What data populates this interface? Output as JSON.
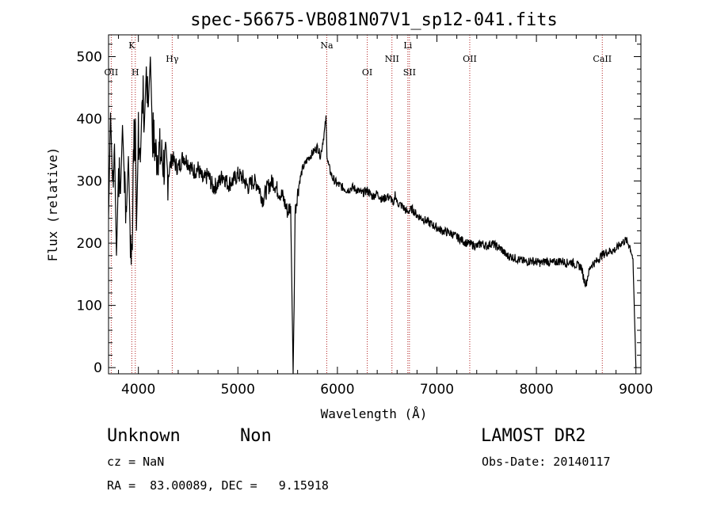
{
  "chart_data": {
    "type": "line",
    "title": "spec-56675-VB081N07V1_sp12-041.fits",
    "xlabel": "Wavelength (Å)",
    "ylabel": "Flux (relative)",
    "xlim": [
      3700,
      9050
    ],
    "ylim": [
      -10,
      535
    ],
    "xticks": [
      "4000",
      "5000",
      "6000",
      "7000",
      "8000",
      "9000"
    ],
    "yticks": [
      "0",
      "100",
      "200",
      "300",
      "400",
      "500"
    ],
    "series": [
      {
        "x": [
          3700,
          3720,
          3740,
          3760,
          3780,
          3800,
          3820,
          3840,
          3860,
          3880,
          3900,
          3920,
          3940,
          3950,
          3960,
          3970,
          3980,
          4000,
          4020,
          4040,
          4060,
          4080,
          4100,
          4120,
          4140,
          4160,
          4180,
          4200,
          4250,
          4300,
          4340,
          4360,
          4400,
          4450,
          4500,
          4550,
          4600,
          4650,
          4700,
          4750,
          4800,
          4850,
          4900,
          4950,
          5000,
          5050,
          5100,
          5150,
          5200,
          5250,
          5300,
          5350,
          5400,
          5450,
          5500,
          5530,
          5545,
          5555,
          5565,
          5575,
          5590,
          5620,
          5650,
          5700,
          5750,
          5800,
          5830,
          5850,
          5870,
          5885,
          5895,
          5905,
          5920,
          5950,
          6000,
          6050,
          6100,
          6150,
          6200,
          6250,
          6300,
          6350,
          6400,
          6450,
          6500,
          6550,
          6563,
          6580,
          6600,
          6650,
          6700,
          6750,
          6800,
          6850,
          6900,
          6950,
          7000,
          7050,
          7100,
          7150,
          7200,
          7250,
          7300,
          7350,
          7400,
          7450,
          7500,
          7550,
          7600,
          7650,
          7700,
          7750,
          7800,
          7850,
          7900,
          7950,
          8000,
          8050,
          8100,
          8150,
          8200,
          8250,
          8300,
          8350,
          8400,
          8450,
          8480,
          8500,
          8520,
          8550,
          8600,
          8650,
          8700,
          8750,
          8800,
          8850,
          8900,
          8940,
          8970,
          9000
        ],
        "y": [
          240,
          410,
          300,
          360,
          180,
          320,
          280,
          390,
          300,
          250,
          340,
          200,
          190,
          380,
          350,
          400,
          220,
          370,
          330,
          450,
          390,
          480,
          420,
          500,
          380,
          360,
          340,
          350,
          330,
          310,
          340,
          330,
          320,
          340,
          330,
          315,
          320,
          300,
          310,
          290,
          295,
          310,
          295,
          300,
          310,
          305,
          290,
          300,
          295,
          270,
          290,
          300,
          285,
          275,
          250,
          260,
          100,
          -10,
          100,
          250,
          270,
          300,
          320,
          335,
          345,
          355,
          340,
          360,
          380,
          400,
          345,
          330,
          320,
          305,
          295,
          290,
          285,
          290,
          285,
          280,
          285,
          275,
          280,
          270,
          275,
          270,
          255,
          280,
          265,
          260,
          250,
          255,
          245,
          240,
          235,
          230,
          225,
          220,
          218,
          215,
          210,
          205,
          200,
          198,
          195,
          200,
          195,
          200,
          195,
          190,
          180,
          178,
          175,
          172,
          170,
          172,
          170,
          168,
          172,
          168,
          170,
          172,
          168,
          170,
          165,
          162,
          140,
          135,
          150,
          165,
          170,
          180,
          185,
          188,
          190,
          200,
          205,
          195,
          175,
          0
        ]
      }
    ],
    "emission_lines": [
      {
        "label": "K",
        "x": 3934,
        "row": 1
      },
      {
        "label": "H",
        "x": 3969,
        "row": 3
      },
      {
        "label": "OII",
        "x": 3727,
        "row": 3
      },
      {
        "label": "Hγ",
        "x": 4340,
        "row": 2
      },
      {
        "label": "Na",
        "x": 5893,
        "row": 1
      },
      {
        "label": "OI",
        "x": 6300,
        "row": 3
      },
      {
        "label": "NII",
        "x": 6548,
        "row": 2
      },
      {
        "label": "Li",
        "x": 6708,
        "row": 1
      },
      {
        "label": "SII",
        "x": 6724,
        "row": 3
      },
      {
        "label": "OII",
        "x": 7330,
        "row": 2
      },
      {
        "label": "CaII",
        "x": 8662,
        "row": 2
      }
    ],
    "line_color": "#000000",
    "marker_color": "#b22222",
    "grid": false
  },
  "info": {
    "class": "Unknown",
    "subclass": "Non",
    "survey": "LAMOST DR2",
    "redshift": "cz = NaN",
    "obs_date": "Obs-Date: 20140117",
    "coords": "RA =  83.00089, DEC =   9.15918"
  }
}
